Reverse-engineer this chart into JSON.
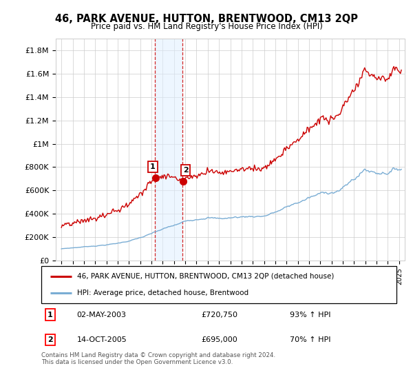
{
  "title": "46, PARK AVENUE, HUTTON, BRENTWOOD, CM13 2QP",
  "subtitle": "Price paid vs. HM Land Registry's House Price Index (HPI)",
  "ylabel_ticks": [
    "£0",
    "£200K",
    "£400K",
    "£600K",
    "£800K",
    "£1M",
    "£1.2M",
    "£1.4M",
    "£1.6M",
    "£1.8M"
  ],
  "ytick_values": [
    0,
    200000,
    400000,
    600000,
    800000,
    1000000,
    1200000,
    1400000,
    1600000,
    1800000
  ],
  "ylim": [
    0,
    1900000
  ],
  "xlim_start": 1994.5,
  "xlim_end": 2025.5,
  "legend_line1": "46, PARK AVENUE, HUTTON, BRENTWOOD, CM13 2QP (detached house)",
  "legend_line2": "HPI: Average price, detached house, Brentwood",
  "sale1_date": "02-MAY-2003",
  "sale1_price": "£720,750",
  "sale1_hpi": "93% ↑ HPI",
  "sale1_year": 2003.33,
  "sale2_date": "14-OCT-2005",
  "sale2_price": "£695,000",
  "sale2_hpi": "70% ↑ HPI",
  "sale2_year": 2005.78,
  "footer": "Contains HM Land Registry data © Crown copyright and database right 2024.\nThis data is licensed under the Open Government Licence v3.0.",
  "red_color": "#cc0000",
  "blue_color": "#7aadd4",
  "shade_color": "#ddeeff"
}
